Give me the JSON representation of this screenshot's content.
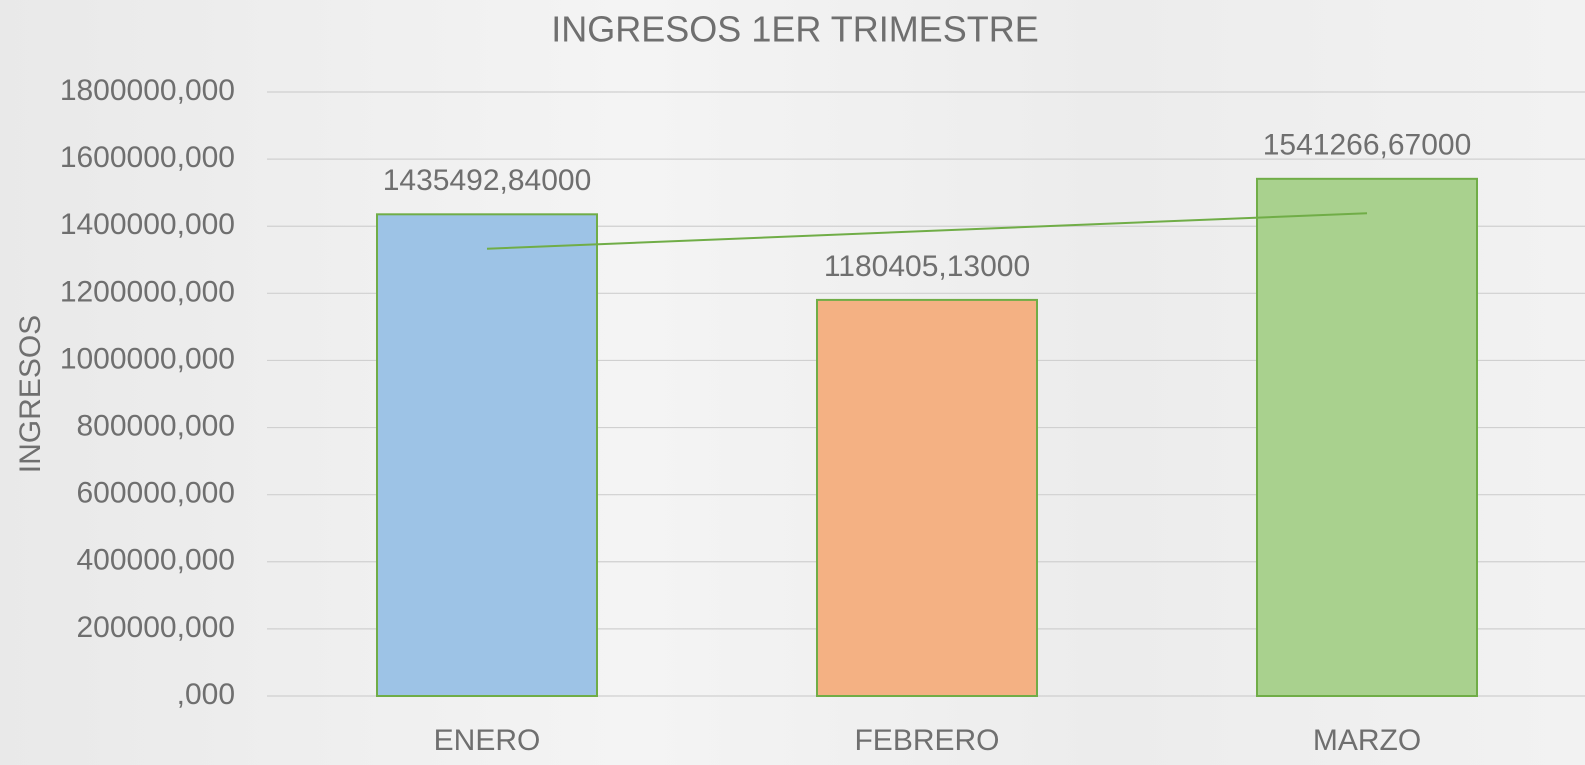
{
  "chart_data": {
    "type": "bar",
    "title": "INGRESOS 1ER TRIMESTRE",
    "y_label": "INGRESOS",
    "categories": [
      "ENERO",
      "FEBRERO",
      "MARZO"
    ],
    "values": [
      1435492.84,
      1180405.13,
      1541266.67
    ],
    "value_labels": [
      "1435492,84000",
      "1180405,13000",
      "1541266,67000"
    ],
    "colors": [
      "#9dc3e6",
      "#f4b183",
      "#a9d18e"
    ],
    "edge_color": "#70ad47",
    "trendline": "linear",
    "trendline_color": "#70ad47",
    "ylim": [
      0,
      1800000
    ],
    "yticks": [
      {
        "value": 0,
        "label": ",000"
      },
      {
        "value": 200000,
        "label": "200000,000"
      },
      {
        "value": 400000,
        "label": "400000,000"
      },
      {
        "value": 600000,
        "label": "600000,000"
      },
      {
        "value": 800000,
        "label": "800000,000"
      },
      {
        "value": 1000000,
        "label": "1000000,000"
      },
      {
        "value": 1200000,
        "label": "1200000,000"
      },
      {
        "value": 1400000,
        "label": "1400000,000"
      },
      {
        "value": 1600000,
        "label": "1600000,000"
      },
      {
        "value": 1800000,
        "label": "1800000,000"
      }
    ],
    "grid": true
  }
}
